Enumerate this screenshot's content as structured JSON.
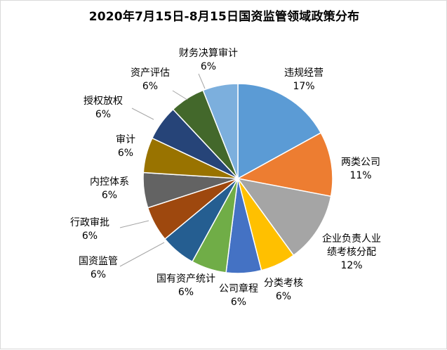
{
  "chart_data": {
    "type": "pie",
    "title": "2020年7月15日-8月15日国资监管领域政策分布",
    "slices": [
      {
        "label": "违规经营",
        "value": 17,
        "display": "17%",
        "color": "#5b9bd5"
      },
      {
        "label": "两类公司",
        "value": 11,
        "display": "11%",
        "color": "#ed7d31"
      },
      {
        "label": "企业负责人业绩考核分配",
        "value": 12,
        "display": "12%",
        "color": "#a5a5a5"
      },
      {
        "label": "分类考核",
        "value": 6,
        "display": "6%",
        "color": "#ffc000"
      },
      {
        "label": "公司章程",
        "value": 6,
        "display": "6%",
        "color": "#4472c4"
      },
      {
        "label": "国有资产统计",
        "value": 6,
        "display": "6%",
        "color": "#70ad47"
      },
      {
        "label": "国资监管",
        "value": 6,
        "display": "6%",
        "color": "#255e91"
      },
      {
        "label": "行政审批",
        "value": 6,
        "display": "6%",
        "color": "#9e480e"
      },
      {
        "label": "内控体系",
        "value": 6,
        "display": "6%",
        "color": "#636363"
      },
      {
        "label": "审计",
        "value": 6,
        "display": "6%",
        "color": "#997300"
      },
      {
        "label": "授权放权",
        "value": 6,
        "display": "6%",
        "color": "#264478"
      },
      {
        "label": "资产评估",
        "value": 6,
        "display": "6%",
        "color": "#43682b"
      },
      {
        "label": "财务决算审计",
        "value": 6,
        "display": "6%",
        "color": "#7cafdd"
      }
    ]
  }
}
